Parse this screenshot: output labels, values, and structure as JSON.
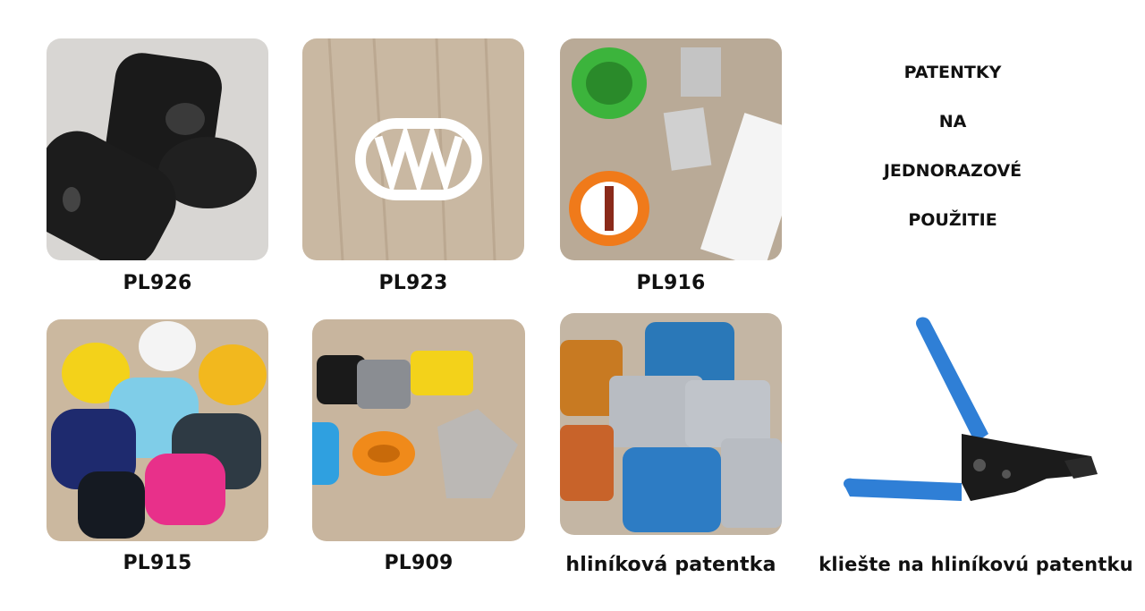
{
  "products": [
    {
      "label": "PL926"
    },
    {
      "label": "PL923"
    },
    {
      "label": "PL916"
    },
    {
      "label": "PL915"
    },
    {
      "label": "PL909"
    },
    {
      "label": "hliníková patentka"
    },
    {
      "label": "kliešte na hliníkovú patentku"
    }
  ],
  "sidebar": {
    "lines": [
      "PATENTKY",
      "NA",
      "JEDNORAZOVÉ",
      "POUŽITIE"
    ]
  },
  "colors": {
    "pliers_handle": "#2f7fd6",
    "pliers_metal": "#1b1b1b"
  }
}
